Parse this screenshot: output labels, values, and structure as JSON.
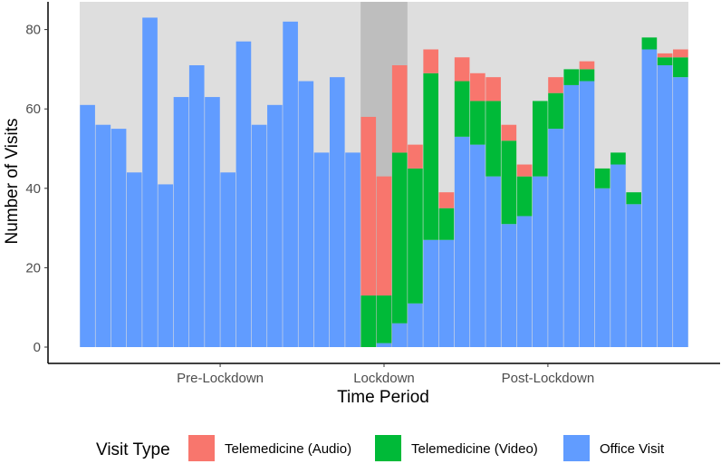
{
  "chart_data": {
    "type": "bar",
    "stacked": true,
    "xlabel": "Time Period",
    "ylabel": "Number of Visits",
    "ylim": [
      0,
      84
    ],
    "yticks": [
      0,
      20,
      40,
      60,
      80
    ],
    "periods": [
      {
        "label": "Pre-Lockdown",
        "start": 0,
        "end": 18
      },
      {
        "label": "Lockdown",
        "start": 18,
        "end": 21
      },
      {
        "label": "Post-Lockdown",
        "start": 21,
        "end": 39
      }
    ],
    "legend": {
      "title": "Visit Type",
      "position": "bottom",
      "items": [
        {
          "key": "audio",
          "label": "Telemedicine (Audio)"
        },
        {
          "key": "video",
          "label": "Telemedicine (Video)"
        },
        {
          "key": "office",
          "label": "Office Visit"
        }
      ]
    },
    "colors": {
      "audio": "#F8766D",
      "video": "#00BA38",
      "office": "#619CFF",
      "panel_background": "#DEDEDE",
      "lockdown_shade": "#BEBEBE"
    },
    "series": [
      {
        "key": "office",
        "name": "Office Visit",
        "values": [
          61,
          56,
          55,
          44,
          83,
          41,
          63,
          71,
          63,
          44,
          77,
          56,
          61,
          82,
          67,
          49,
          68,
          49,
          0,
          1,
          6,
          11,
          27,
          27,
          53,
          51,
          43,
          31,
          33,
          43,
          55,
          66,
          67,
          40,
          46,
          36,
          75,
          71,
          68
        ]
      },
      {
        "key": "video",
        "name": "Telemedicine (Video)",
        "values": [
          0,
          0,
          0,
          0,
          0,
          0,
          0,
          0,
          0,
          0,
          0,
          0,
          0,
          0,
          0,
          0,
          0,
          0,
          13,
          12,
          43,
          34,
          42,
          8,
          14,
          11,
          19,
          21,
          10,
          19,
          9,
          4,
          3,
          5,
          3,
          3,
          3,
          2,
          5
        ]
      },
      {
        "key": "audio",
        "name": "Telemedicine (Audio)",
        "values": [
          0,
          0,
          0,
          0,
          0,
          0,
          0,
          0,
          0,
          0,
          0,
          0,
          0,
          0,
          0,
          0,
          0,
          0,
          45,
          30,
          22,
          6,
          6,
          4,
          6,
          7,
          6,
          4,
          3,
          0,
          4,
          0,
          2,
          0,
          0,
          0,
          0,
          1,
          2
        ]
      }
    ]
  }
}
